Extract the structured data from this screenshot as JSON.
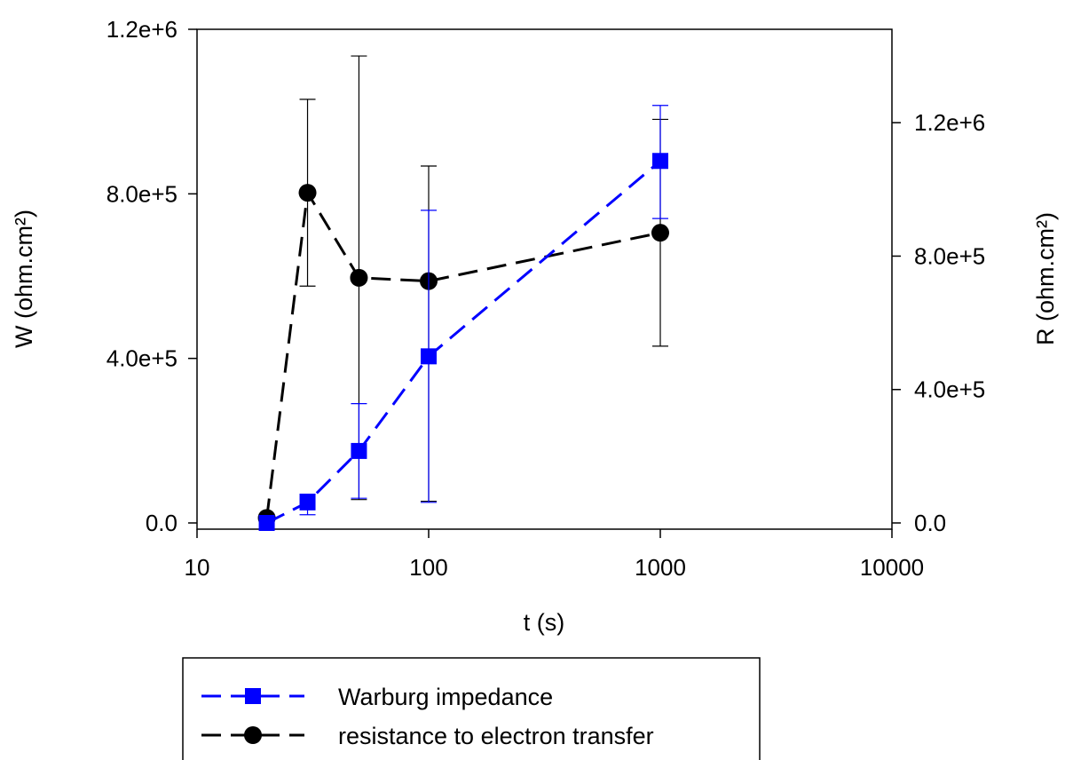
{
  "chart_data": {
    "type": "line",
    "title": "",
    "xlabel": "t (s)",
    "ylabel_left": "W (ohm.cm²)",
    "ylabel_right": "R (ohm.cm²)",
    "x_scale": "log",
    "xlim": [
      10,
      10000
    ],
    "x_ticks": [
      10,
      100,
      1000,
      10000
    ],
    "x_tick_labels": [
      "10",
      "100",
      "1000",
      "10000"
    ],
    "ylim_left": [
      0,
      1200000
    ],
    "y_ticks_left": [
      0,
      400000,
      800000,
      1200000
    ],
    "y_tick_labels_left": [
      "0.0",
      "4.0e+5",
      "8.0e+5",
      "1.2e+6"
    ],
    "ylim_right": [
      0,
      1480000
    ],
    "y_ticks_right": [
      0,
      400000,
      800000,
      1200000
    ],
    "y_tick_labels_right": [
      "0.0",
      "4.0e+5",
      "8.0e+5",
      "1.2e+6"
    ],
    "grid": false,
    "legend_position": "bottom",
    "series": [
      {
        "name": "Warburg impedance",
        "axis": "left",
        "color": "#0000ff",
        "marker": "square",
        "line_style": "dashed",
        "x": [
          20,
          30,
          50,
          100,
          1000
        ],
        "y": [
          0,
          50000,
          175000,
          405000,
          880000
        ],
        "err_low": [
          0,
          30000,
          115000,
          355000,
          140000
        ],
        "err_high": [
          0,
          20000,
          115000,
          355000,
          135000
        ]
      },
      {
        "name": "resistance to electron transfer",
        "axis": "right",
        "color": "#000000",
        "marker": "circle",
        "line_style": "dashed",
        "x": [
          20,
          30,
          50,
          100,
          1000
        ],
        "y": [
          15000,
          990000,
          735000,
          725000,
          870000
        ],
        "err_low": [
          0,
          280000,
          665000,
          660000,
          340000
        ],
        "err_high": [
          0,
          280000,
          665000,
          345000,
          340000
        ]
      }
    ]
  }
}
